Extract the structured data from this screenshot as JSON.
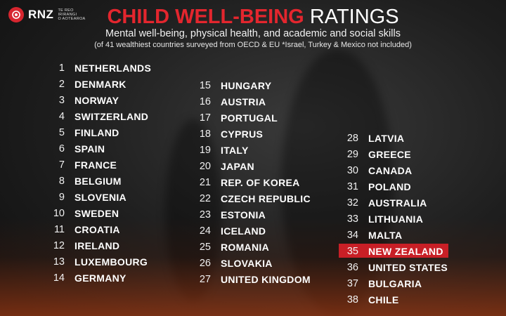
{
  "brand": {
    "logo_text": "RNZ",
    "logo_sub_1": "TE REO",
    "logo_sub_2": "IRIRANGI",
    "logo_sub_3": "O AOTEAROA"
  },
  "header": {
    "title_red": "CHILD WELL-BEING",
    "title_white": "RATINGS",
    "subtitle": "Mental well-being, physical health, and academic and social skills",
    "note": "(of 41 wealthiest countries surveyed from OECD & EU  *Israel, Turkey & Mexico not included)"
  },
  "highlight_color": "#c81f26",
  "columns": [
    [
      {
        "rank": "1",
        "name": "NETHERLANDS"
      },
      {
        "rank": "2",
        "name": "DENMARK"
      },
      {
        "rank": "3",
        "name": "NORWAY"
      },
      {
        "rank": "4",
        "name": "SWITZERLAND"
      },
      {
        "rank": "5",
        "name": "FINLAND"
      },
      {
        "rank": "6",
        "name": "SPAIN"
      },
      {
        "rank": "7",
        "name": "FRANCE"
      },
      {
        "rank": "8",
        "name": "BELGIUM"
      },
      {
        "rank": "9",
        "name": "SLOVENIA"
      },
      {
        "rank": "10",
        "name": "SWEDEN"
      },
      {
        "rank": "11",
        "name": "CROATIA"
      },
      {
        "rank": "12",
        "name": "IRELAND"
      },
      {
        "rank": "13",
        "name": "LUXEMBOURG"
      },
      {
        "rank": "14",
        "name": "GERMANY"
      }
    ],
    [
      {
        "rank": "15",
        "name": "HUNGARY"
      },
      {
        "rank": "16",
        "name": "AUSTRIA"
      },
      {
        "rank": "17",
        "name": "PORTUGAL"
      },
      {
        "rank": "18",
        "name": "CYPRUS"
      },
      {
        "rank": "19",
        "name": "ITALY"
      },
      {
        "rank": "20",
        "name": "JAPAN"
      },
      {
        "rank": "21",
        "name": "REP. OF KOREA"
      },
      {
        "rank": "22",
        "name": "CZECH REPUBLIC"
      },
      {
        "rank": "23",
        "name": "ESTONIA"
      },
      {
        "rank": "24",
        "name": "ICELAND"
      },
      {
        "rank": "25",
        "name": "ROMANIA"
      },
      {
        "rank": "26",
        "name": "SLOVAKIA"
      },
      {
        "rank": "27",
        "name": "UNITED KINGDOM"
      }
    ],
    [
      {
        "rank": "28",
        "name": "LATVIA"
      },
      {
        "rank": "29",
        "name": "GREECE"
      },
      {
        "rank": "30",
        "name": "CANADA"
      },
      {
        "rank": "31",
        "name": "POLAND"
      },
      {
        "rank": "32",
        "name": "AUSTRALIA"
      },
      {
        "rank": "33",
        "name": "LITHUANIA"
      },
      {
        "rank": "34",
        "name": "MALTA"
      },
      {
        "rank": "35",
        "name": "NEW ZEALAND",
        "highlight": true
      },
      {
        "rank": "36",
        "name": "UNITED STATES"
      },
      {
        "rank": "37",
        "name": "BULGARIA"
      },
      {
        "rank": "38",
        "name": "CHILE"
      }
    ]
  ]
}
